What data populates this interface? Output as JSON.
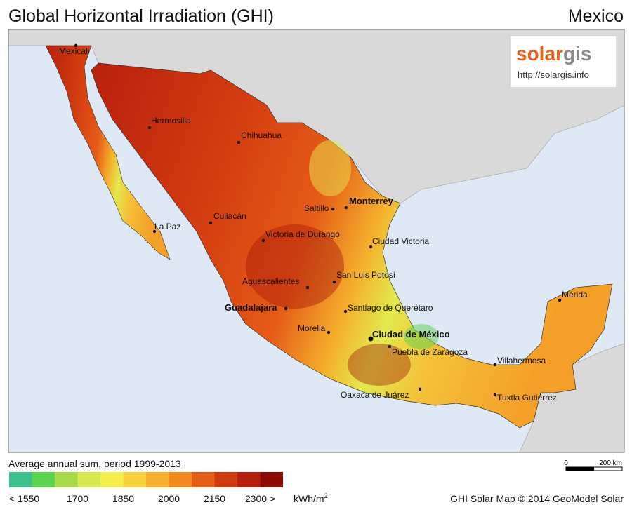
{
  "title": "Global Horizontal Irradiation (GHI)",
  "country": "Mexico",
  "logo": {
    "brand_a": "solar",
    "brand_b": "gis",
    "url": "http://solargis.info"
  },
  "cities": [
    "Mexicali",
    "Hermosillo",
    "Chihuahua",
    "Monterrey",
    "Saltillo",
    "Culiacán",
    "La Paz",
    "Victoria de Durango",
    "Ciudad Victoria",
    "San Luis Potosí",
    "Aguascalientes",
    "Guadalajara",
    "Santiago de Querétaro",
    "Morelia",
    "Ciudad de México",
    "Puebla de Zaragoza",
    "Mérida",
    "Villahermosa",
    "Oaxaca de Juárez",
    "Tuxtla Gutiérrez"
  ],
  "legend": {
    "title": "Average annual sum, period 1999-2013",
    "colors": [
      "#3cc08d",
      "#5bd150",
      "#a6d84a",
      "#d8e850",
      "#f4ee4c",
      "#f7d03c",
      "#f5b02d",
      "#f08a1f",
      "#e35e17",
      "#cf3a10",
      "#b51f0b",
      "#8e0a05"
    ],
    "labels": [
      "< 1550",
      "1700",
      "1850",
      "2000",
      "2150",
      "2300 >"
    ],
    "unit": "kWh/m",
    "unit_sup": "2"
  },
  "scale": {
    "start": "0",
    "end": "200 km"
  },
  "credit": "GHI Solar Map © 2014 GeoModel Solar"
}
